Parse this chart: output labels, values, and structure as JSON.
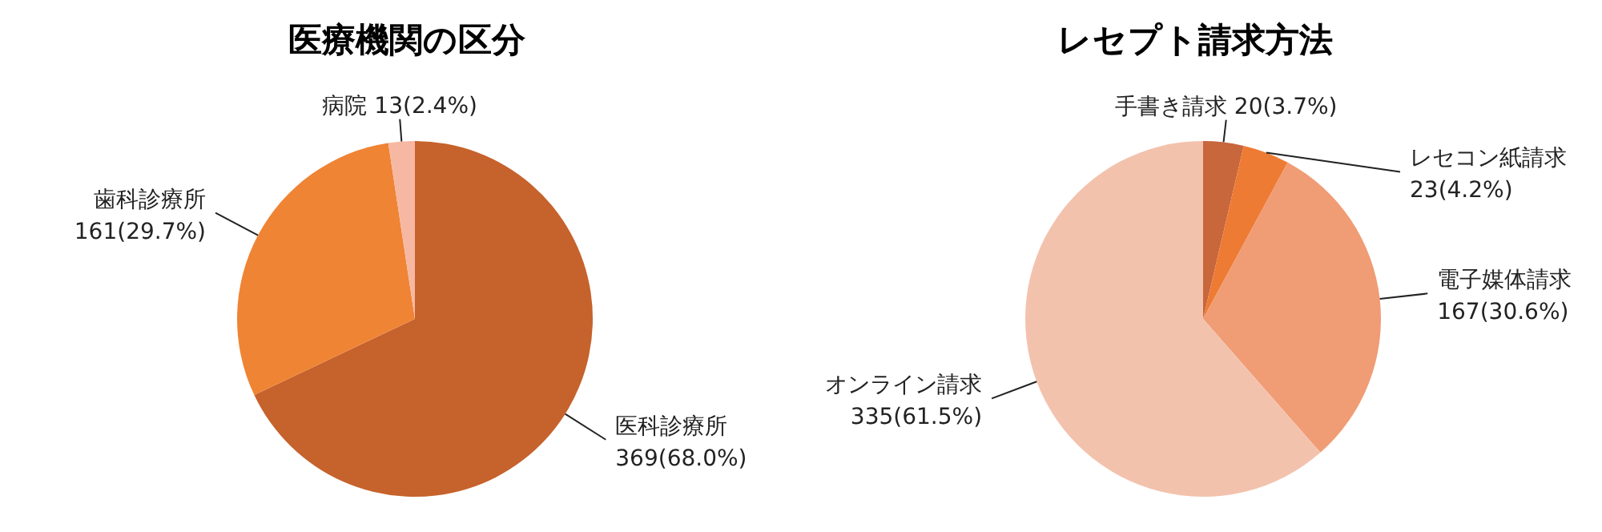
{
  "chart_data": [
    {
      "type": "pie",
      "title": "医療機関の区分",
      "categories": [
        "医科診療所",
        "歯科診療所",
        "病院"
      ],
      "values": [
        369,
        161,
        13
      ],
      "colors": [
        "#c6622c",
        "#ef8435",
        "#f6b8a2"
      ],
      "value_labels": [
        "369(68.0%)",
        "161(29.7%)",
        "13(2.4%)"
      ]
    },
    {
      "type": "pie",
      "title": "レセプト請求方法",
      "categories": [
        "手書き請求",
        "レセコン紙請求",
        "電子媒体請求",
        "オンライン請求"
      ],
      "values": [
        20,
        23,
        167,
        335
      ],
      "colors": [
        "#c8663c",
        "#ed7b34",
        "#f09c74",
        "#f3c2ad"
      ],
      "value_labels": [
        "20(3.7%)",
        "23(4.2%)",
        "167(30.6%)",
        "335(61.5%)"
      ]
    }
  ]
}
